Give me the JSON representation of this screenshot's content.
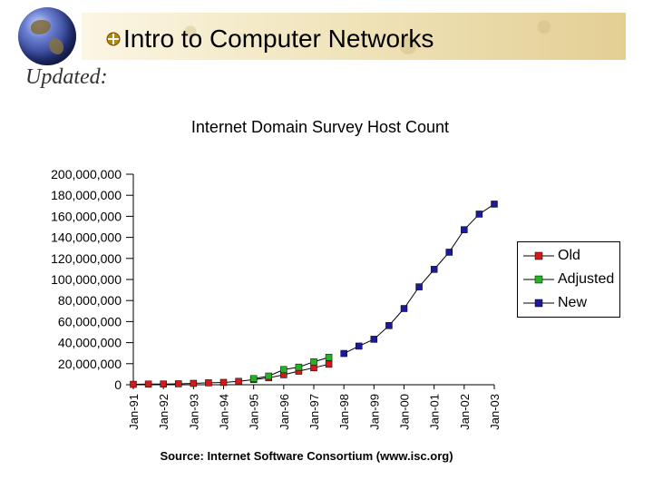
{
  "header": {
    "title": "Intro to Computer Networks",
    "subtitle": "Updated:"
  },
  "icons": {
    "globe": "globe-icon",
    "bullet": "bullet-icon"
  },
  "colors": {
    "old": "#d21a1a",
    "adjusted": "#23b423",
    "new": "#1a1a9a"
  },
  "chart_data": {
    "type": "line",
    "title": "Internet Domain Survey Host Count",
    "source": "Source: Internet Software Consortium (www.isc.org)",
    "xlabel": "",
    "ylabel": "",
    "ylim": [
      0,
      200000000
    ],
    "y_ticks": [
      "200,000,000",
      "180,000,000",
      "160,000,000",
      "140,000,000",
      "120,000,000",
      "100,000,000",
      "80,000,000",
      "60,000,000",
      "40,000,000",
      "20,000,000",
      "0"
    ],
    "x_ticks": [
      "Jan-91",
      "Jan-92",
      "Jan-93",
      "Jan-94",
      "Jan-95",
      "Jan-96",
      "Jan-97",
      "Jan-98",
      "Jan-99",
      "Jan-00",
      "Jan-01",
      "Jan-02",
      "Jan-03"
    ],
    "legend_position": "right",
    "series": [
      {
        "name": "Old",
        "color": "#d21a1a",
        "points": [
          [
            0,
            0.4
          ],
          [
            0.5,
            0.6
          ],
          [
            1,
            0.7
          ],
          [
            1.5,
            0.9
          ],
          [
            2,
            1.3
          ],
          [
            2.5,
            1.8
          ],
          [
            3,
            2.2
          ],
          [
            3.5,
            3.2
          ],
          [
            4,
            4.9
          ],
          [
            4.5,
            6.6
          ],
          [
            5,
            9.5
          ],
          [
            5.5,
            12.9
          ],
          [
            6,
            16.1
          ],
          [
            6.5,
            19.5
          ]
        ]
      },
      {
        "name": "Adjusted",
        "color": "#23b423",
        "points": [
          [
            4,
            5.8
          ],
          [
            4.5,
            8.2
          ],
          [
            5,
            14.4
          ],
          [
            5.5,
            16.7
          ],
          [
            6,
            21.8
          ],
          [
            6.5,
            26.1
          ]
        ]
      },
      {
        "name": "New",
        "color": "#1a1a9a",
        "points": [
          [
            7,
            29.7
          ],
          [
            7.5,
            36.7
          ],
          [
            8,
            43.2
          ],
          [
            8.5,
            56.2
          ],
          [
            9,
            72.4
          ],
          [
            9.5,
            93.0
          ],
          [
            10,
            109.6
          ],
          [
            10.5,
            125.9
          ],
          [
            11,
            147.3
          ],
          [
            11.5,
            162.1
          ],
          [
            12,
            171.6
          ]
        ]
      }
    ]
  }
}
